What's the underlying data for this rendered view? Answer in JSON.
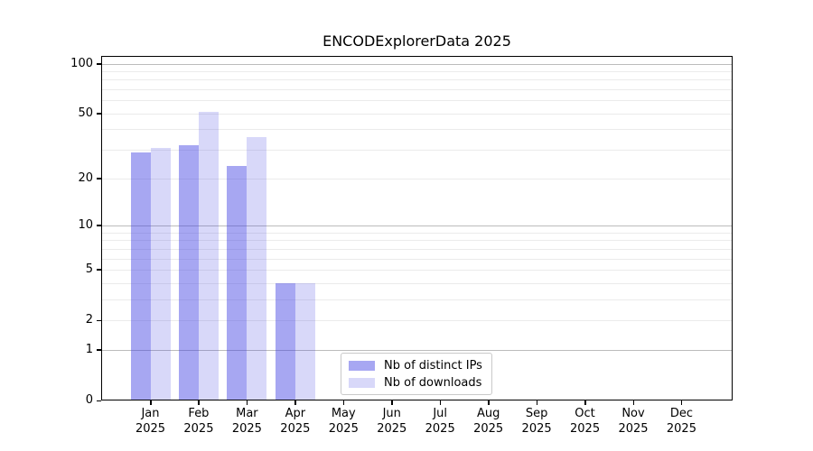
{
  "chart_data": {
    "type": "bar",
    "title": "ENCODExplorerData 2025",
    "categories": [
      "Jan",
      "Feb",
      "Mar",
      "Apr",
      "May",
      "Jun",
      "Jul",
      "Aug",
      "Sep",
      "Oct",
      "Nov",
      "Dec"
    ],
    "category_year": "2025",
    "series": [
      {
        "name": "Nb of distinct IPs",
        "fill": "rgba(60,60,227,0.45)",
        "hex_on_white": "#a7a7f2",
        "values": [
          29,
          32,
          24,
          4,
          0,
          0,
          0,
          0,
          0,
          0,
          0,
          0
        ]
      },
      {
        "name": "Nb of downloads",
        "fill": "rgba(60,60,227,0.20)",
        "hex_on_white": "#d8d8f9",
        "values": [
          31,
          51,
          36,
          4,
          0,
          0,
          0,
          0,
          0,
          0,
          0,
          0
        ]
      }
    ],
    "xlabel": "",
    "ylabel": "",
    "yscale": "log1p",
    "ylim": [
      0,
      112
    ],
    "y_ticks": [
      100,
      50,
      20,
      10,
      5,
      2,
      1,
      0
    ],
    "grid": {
      "major_lines": [
        1,
        10,
        100
      ],
      "minor_lines": [
        2,
        3,
        4,
        5,
        6,
        7,
        8,
        9,
        20,
        30,
        40,
        50,
        60,
        70,
        80,
        90
      ],
      "major_color": "#bcbcbc",
      "minor_color": "#ebebeb"
    },
    "legend_position": "lower center",
    "frame_color": "#000000",
    "background_color": "#ffffff"
  }
}
